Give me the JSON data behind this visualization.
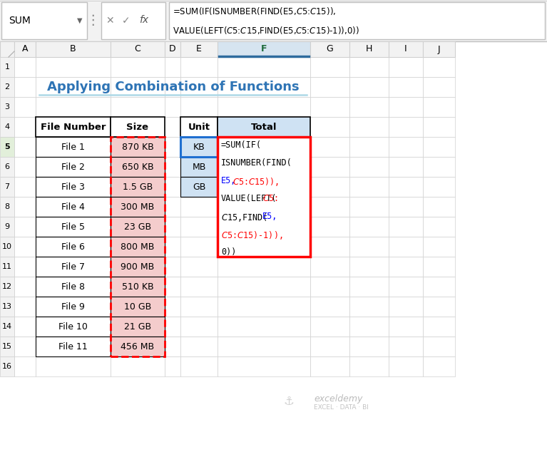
{
  "title": "Applying Combination of Functions",
  "title_color": "#2E74B5",
  "formula_line1": "=SUM(IF(ISNUMBER(FIND(E5,$C$5:$C$15)),",
  "formula_line2": "VALUE(LEFT($C$5:$C$15,FIND(E5,$C$5:$C$15)-1)),0))",
  "col_headers": [
    "A",
    "B",
    "C",
    "D",
    "E",
    "F",
    "G",
    "H",
    "I",
    "J"
  ],
  "row_numbers": [
    "1",
    "2",
    "3",
    "4",
    "5",
    "6",
    "7",
    "8",
    "9",
    "10",
    "11",
    "12",
    "13",
    "14",
    "15",
    "16"
  ],
  "file_numbers": [
    "File 1",
    "File 2",
    "File 3",
    "File 4",
    "File 5",
    "File 6",
    "File 7",
    "File 8",
    "File 9",
    "File 10",
    "File 11"
  ],
  "sizes": [
    "870 KB",
    "650 KB",
    "1.5 GB",
    "300 MB",
    "23 GB",
    "800 MB",
    "900 MB",
    "510 KB",
    "10 GB",
    "21 GB",
    "456 MB"
  ],
  "units": [
    "KB",
    "MB",
    "GB"
  ],
  "size_cell_bg": "#F4CCCC",
  "unit_cell_bg": "#CFE2F3",
  "total_header_bg": "#CFE2F3",
  "spreadsheet_bg": "#FFFFFF",
  "grid_color": "#D0D0D0",
  "col_header_bg": "#F2F2F2",
  "row_header_bg": "#F2F2F2",
  "col_F_header_bg": "#D6E4F0",
  "col_F_header_line": "#2E6B9E",
  "row5_num_bg": "#E2EFDA",
  "formula_border_color": "#FF0000",
  "e5_border_color": "#1F6FD0",
  "namebox_bg": "#FFFFFF",
  "formula_bar_bg": "#FFFFFF",
  "bar_area_bg": "#F2F2F2",
  "watermark_color": "#AAAAAA",
  "formula_text": [
    [
      "=SUM(IF(",
      "black"
    ],
    [
      "ISNUMBER(FIND(",
      "black"
    ],
    [
      "E5,",
      "blue"
    ],
    [
      "$C$5:$C$15)),",
      "red"
    ],
    [
      "VALUE(LEFT(",
      "black"
    ],
    [
      "$C$5:",
      "red"
    ],
    [
      "$C$15,FIND(",
      "black"
    ],
    [
      "E5,",
      "blue"
    ],
    [
      "$C$5:$C$15)-1)),",
      "red"
    ],
    [
      "0))",
      "black"
    ]
  ],
  "formula_lines_display": [
    [
      [
        "=SUM(IF(",
        "black"
      ]
    ],
    [
      [
        "ISNUMBER(FIND(",
        "black"
      ]
    ],
    [
      [
        "E5,",
        "blue"
      ],
      [
        "$C$5:$C$15)),",
        "red"
      ]
    ],
    [
      [
        "VALUE(LEFT(",
        "black"
      ],
      [
        "$C$5:",
        "red"
      ]
    ],
    [
      [
        "$C$15,FIND(",
        "black"
      ],
      [
        "E5,",
        "blue"
      ]
    ],
    [
      [
        "$C$5:$C$15)-1)),",
        "red"
      ]
    ],
    [
      [
        "0))",
        "black"
      ]
    ]
  ]
}
